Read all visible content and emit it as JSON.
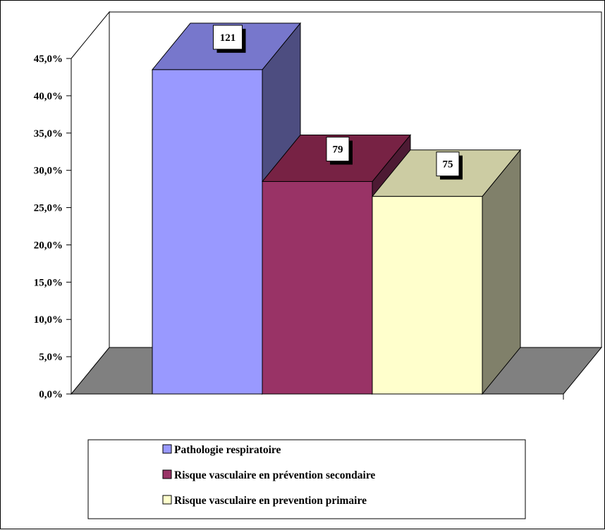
{
  "chart_data": {
    "type": "bar",
    "style": "3d",
    "categories": [
      "Pathologie respiratoire",
      "Risque vasculaire en prévention secondaire",
      "Risque vasculaire en prevention primaire"
    ],
    "values": [
      43.5,
      28.5,
      26.5
    ],
    "data_labels": [
      "121",
      "79",
      "75"
    ],
    "colors": {
      "front": [
        "#9999ff",
        "#993366",
        "#ffffcc"
      ],
      "top": [
        "#7777cc",
        "#772244",
        "#cccca3"
      ],
      "side": [
        "#4d4d80",
        "#4d1a33",
        "#80806a"
      ],
      "floor": "#808080"
    },
    "ylim": [
      0,
      45
    ],
    "y_ticks": [
      0,
      5,
      10,
      15,
      20,
      25,
      30,
      35,
      40,
      45
    ],
    "y_tick_labels": [
      "0,0%",
      "5,0%",
      "10,0%",
      "15,0%",
      "20,0%",
      "25,0%",
      "30,0%",
      "35,0%",
      "40,0%",
      "45,0%"
    ],
    "title": "",
    "xlabel": "",
    "ylabel": "",
    "grid": false,
    "legend": {
      "position": "bottom",
      "entries": [
        "Pathologie respiratoire",
        "Risque vasculaire en prévention secondaire",
        "Risque vasculaire en prevention primaire"
      ]
    }
  }
}
